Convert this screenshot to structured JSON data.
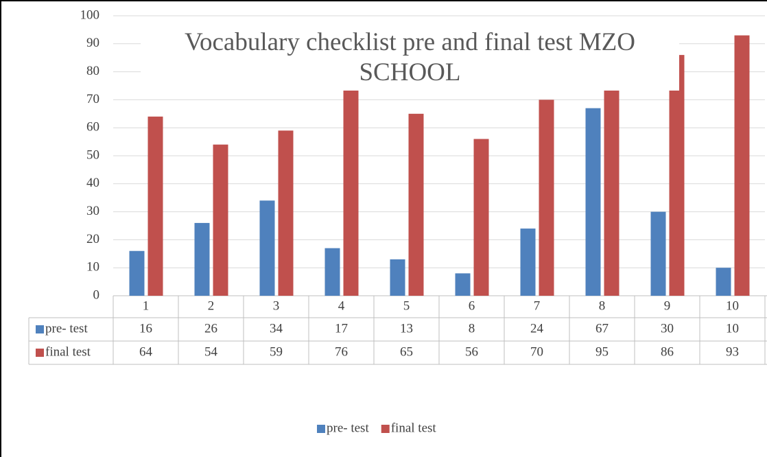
{
  "chart_data": {
    "type": "bar",
    "title": "Vocabulary checklist pre and final test MZO SCHOOL",
    "categories": [
      "1",
      "2",
      "3",
      "4",
      "5",
      "6",
      "7",
      "8",
      "9",
      "10"
    ],
    "series": [
      {
        "name": "pre- test",
        "color": "#4f81bd",
        "values": [
          16,
          26,
          34,
          17,
          13,
          8,
          24,
          67,
          30,
          10
        ]
      },
      {
        "name": "final test",
        "color": "#c0504d",
        "values": [
          64,
          54,
          59,
          76,
          65,
          56,
          70,
          95,
          86,
          93
        ]
      }
    ],
    "ylim": [
      0,
      100
    ],
    "yticks": [
      0,
      10,
      20,
      30,
      40,
      50,
      60,
      70,
      80,
      90,
      100
    ],
    "grid": true,
    "legend": "bottom"
  }
}
